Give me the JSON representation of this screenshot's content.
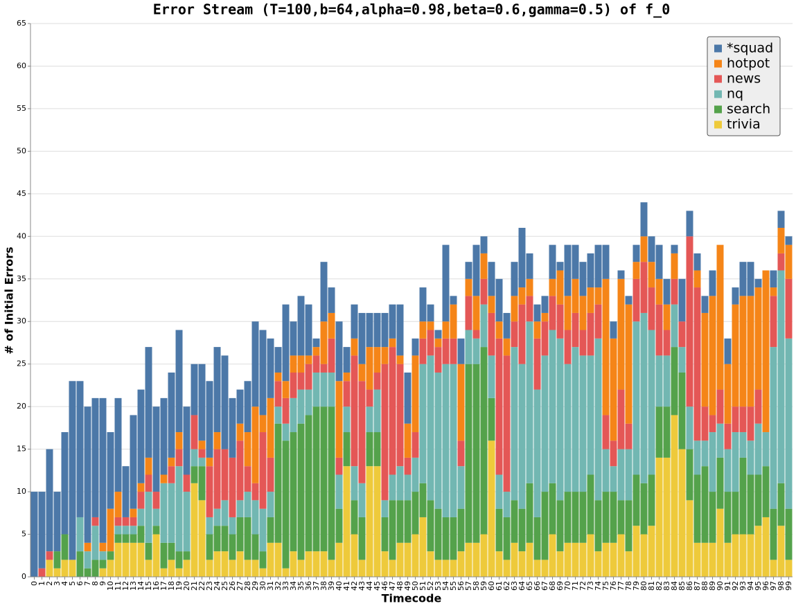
{
  "chart_data": {
    "type": "stacked_bar",
    "title": "Error Stream (T=100,b=64,alpha=0.98,beta=0.6,gamma=0.5) of f_0",
    "x_label": "Timecode",
    "y_label": "# of Initial Errors",
    "categories": [
      "0",
      "1",
      "2",
      "3",
      "4",
      "5",
      "6",
      "7",
      "8",
      "9",
      "10",
      "11",
      "12",
      "13",
      "14",
      "15",
      "16",
      "17",
      "18",
      "19",
      "20",
      "21",
      "22",
      "23",
      "24",
      "25",
      "26",
      "27",
      "28",
      "29",
      "30",
      "31",
      "32",
      "33",
      "34",
      "35",
      "36",
      "37",
      "38",
      "39",
      "40",
      "41",
      "42",
      "43",
      "44",
      "45",
      "46",
      "47",
      "48",
      "49",
      "50",
      "51",
      "52",
      "53",
      "54",
      "55",
      "56",
      "57",
      "58",
      "59",
      "60",
      "61",
      "62",
      "63",
      "64",
      "65",
      "66",
      "67",
      "68",
      "69",
      "70",
      "71",
      "72",
      "73",
      "74",
      "75",
      "76",
      "77",
      "78",
      "79",
      "80",
      "81",
      "82",
      "83",
      "84",
      "85",
      "86",
      "87",
      "88",
      "89",
      "90",
      "91",
      "92",
      "93",
      "94",
      "95",
      "96",
      "97",
      "98",
      "99"
    ],
    "series": [
      {
        "name": "*squad",
        "color": "#4c78a8",
        "values": [
          10,
          9,
          12,
          7,
          12,
          21,
          16,
          16,
          14,
          17,
          9,
          11,
          6,
          11,
          11,
          13,
          10,
          9,
          10,
          12,
          8,
          6,
          9,
          9,
          10,
          11,
          7,
          4,
          6,
          10,
          10,
          7,
          3,
          9,
          4,
          7,
          6,
          1,
          7,
          3,
          7,
          3,
          4,
          6,
          4,
          4,
          4,
          4,
          6,
          6,
          2,
          4,
          2,
          1,
          9,
          1,
          3,
          2,
          6,
          2,
          4,
          5,
          3,
          4,
          7,
          3,
          2,
          2,
          4,
          1,
          6,
          4,
          4,
          4,
          5,
          4,
          2,
          1,
          1,
          2,
          4,
          3,
          4,
          3,
          1,
          5,
          3,
          2,
          2,
          3,
          0,
          3,
          2,
          4,
          4,
          1,
          0,
          2,
          2,
          1
        ]
      },
      {
        "name": "hotpot",
        "color": "#f58518",
        "values": [
          0,
          0,
          0,
          0,
          0,
          0,
          0,
          1,
          0,
          1,
          5,
          3,
          0,
          1,
          1,
          2,
          0,
          1,
          1,
          2,
          0,
          0,
          1,
          1,
          2,
          0,
          0,
          2,
          4,
          9,
          2,
          7,
          1,
          2,
          2,
          2,
          1,
          1,
          5,
          3,
          9,
          1,
          2,
          2,
          5,
          3,
          2,
          1,
          1,
          4,
          9,
          2,
          1,
          1,
          2,
          4,
          9,
          2,
          4,
          3,
          2,
          2,
          2,
          3,
          2,
          2,
          2,
          1,
          2,
          4,
          4,
          4,
          4,
          3,
          2,
          16,
          12,
          13,
          14,
          2,
          3,
          3,
          3,
          3,
          3,
          0,
          0,
          2,
          11,
          14,
          17,
          7,
          12,
          13,
          13,
          12,
          19,
          1,
          3,
          4
        ]
      },
      {
        "name": "news",
        "color": "#e45756",
        "values": [
          0,
          1,
          1,
          0,
          0,
          0,
          0,
          0,
          1,
          0,
          0,
          1,
          1,
          1,
          2,
          2,
          2,
          0,
          2,
          2,
          2,
          4,
          1,
          6,
          7,
          6,
          7,
          7,
          3,
          2,
          9,
          4,
          3,
          3,
          3,
          2,
          3,
          2,
          1,
          4,
          2,
          3,
          13,
          12,
          2,
          2,
          16,
          15,
          12,
          2,
          3,
          3,
          3,
          3,
          3,
          3,
          3,
          4,
          1,
          3,
          5,
          16,
          16,
          3,
          7,
          3,
          6,
          4,
          4,
          4,
          4,
          4,
          3,
          5,
          4,
          4,
          3,
          7,
          3,
          5,
          6,
          5,
          6,
          3,
          3,
          3,
          20,
          18,
          4,
          2,
          4,
          3,
          3,
          3,
          4,
          4,
          0,
          6,
          2,
          7
        ]
      },
      {
        "name": "nq",
        "color": "#72b7b2",
        "values": [
          0,
          0,
          0,
          0,
          0,
          0,
          4,
          2,
          4,
          1,
          0,
          1,
          1,
          1,
          2,
          6,
          2,
          7,
          7,
          10,
          7,
          2,
          1,
          2,
          2,
          3,
          2,
          2,
          3,
          4,
          5,
          3,
          2,
          2,
          4,
          4,
          3,
          4,
          4,
          4,
          4,
          3,
          4,
          4,
          3,
          5,
          2,
          3,
          4,
          3,
          4,
          14,
          17,
          16,
          18,
          18,
          5,
          4,
          3,
          5,
          5,
          4,
          3,
          18,
          17,
          19,
          15,
          16,
          18,
          19,
          15,
          17,
          16,
          14,
          19,
          5,
          3,
          6,
          6,
          18,
          20,
          17,
          6,
          6,
          5,
          3,
          5,
          4,
          3,
          7,
          4,
          5,
          7,
          3,
          4,
          6,
          4,
          19,
          25,
          20
        ]
      },
      {
        "name": "search",
        "color": "#54a24b",
        "values": [
          0,
          0,
          0,
          2,
          3,
          0,
          3,
          1,
          2,
          1,
          1,
          1,
          1,
          1,
          2,
          2,
          1,
          3,
          2,
          2,
          1,
          2,
          4,
          3,
          3,
          3,
          3,
          4,
          5,
          3,
          2,
          3,
          14,
          15,
          14,
          16,
          16,
          17,
          17,
          18,
          4,
          4,
          4,
          5,
          4,
          4,
          4,
          7,
          5,
          5,
          5,
          4,
          6,
          6,
          5,
          5,
          5,
          21,
          21,
          22,
          5,
          5,
          5,
          5,
          5,
          7,
          5,
          8,
          6,
          6,
          6,
          6,
          6,
          7,
          6,
          6,
          6,
          4,
          6,
          6,
          6,
          6,
          6,
          6,
          8,
          9,
          6,
          8,
          9,
          6,
          6,
          6,
          5,
          9,
          7,
          6,
          6,
          6,
          5,
          6
        ]
      },
      {
        "name": "trivia",
        "color": "#eeca3b",
        "values": [
          0,
          0,
          2,
          1,
          2,
          2,
          0,
          0,
          0,
          1,
          2,
          4,
          4,
          4,
          4,
          2,
          5,
          1,
          2,
          1,
          2,
          11,
          9,
          2,
          3,
          3,
          2,
          3,
          2,
          2,
          1,
          4,
          4,
          1,
          3,
          2,
          3,
          3,
          3,
          2,
          4,
          13,
          5,
          2,
          13,
          13,
          3,
          2,
          4,
          4,
          5,
          7,
          3,
          2,
          2,
          2,
          3,
          4,
          4,
          5,
          16,
          3,
          2,
          4,
          3,
          4,
          2,
          2,
          5,
          3,
          4,
          4,
          4,
          5,
          3,
          4,
          4,
          5,
          3,
          6,
          5,
          6,
          14,
          14,
          19,
          15,
          9,
          4,
          4,
          4,
          8,
          4,
          5,
          5,
          5,
          6,
          7,
          2,
          6,
          2
        ]
      }
    ],
    "ylim": [
      0,
      65
    ],
    "yticks": [
      0,
      5,
      10,
      15,
      20,
      25,
      30,
      35,
      40,
      45,
      50,
      55,
      60,
      65
    ],
    "grid": true,
    "legend": "upper right"
  }
}
